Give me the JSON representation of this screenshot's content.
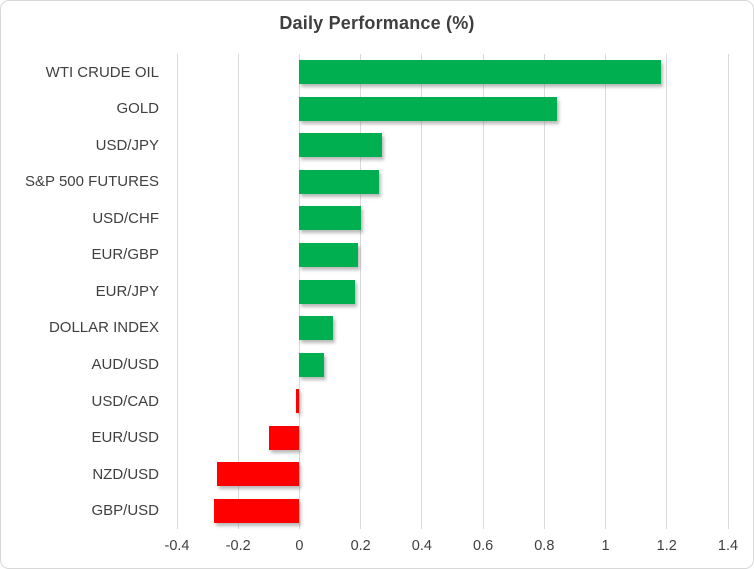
{
  "chart_data": {
    "type": "bar",
    "orientation": "horizontal",
    "title": "Daily Performance (%)",
    "categories": [
      "WTI CRUDE OIL",
      "GOLD",
      "USD/JPY",
      "S&P 500 FUTURES",
      "USD/CHF",
      "EUR/GBP",
      "EUR/JPY",
      "DOLLAR INDEX",
      "AUD/USD",
      "USD/CAD",
      "EUR/USD",
      "NZD/USD",
      "GBP/USD"
    ],
    "values": [
      1.18,
      0.84,
      0.27,
      0.26,
      0.2,
      0.19,
      0.18,
      0.11,
      0.08,
      -0.01,
      -0.1,
      -0.27,
      -0.28
    ],
    "xlim": [
      -0.4,
      1.4
    ],
    "x_ticks": [
      -0.4,
      -0.2,
      0,
      0.2,
      0.4,
      0.6,
      0.8,
      1,
      1.2,
      1.4
    ],
    "x_tick_labels": [
      "-0.4",
      "-0.2",
      "0",
      "0.2",
      "0.4",
      "0.6",
      "0.8",
      "1",
      "1.2",
      "1.4"
    ],
    "grid": "vertical",
    "legend": "none",
    "colors": {
      "positive": "#00B050",
      "negative": "#FF0000",
      "gridline": "#D9D9D9",
      "text": "#404040",
      "title": "#3F3F3F",
      "frame_border": "#D8D8D8",
      "background": "#FFFFFF"
    }
  }
}
